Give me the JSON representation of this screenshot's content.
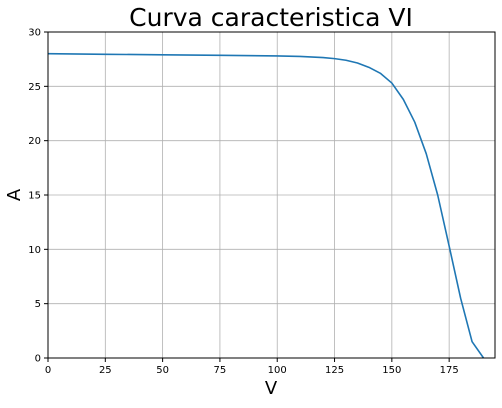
{
  "chart_data": {
    "type": "line",
    "title": "Curva caracteristica VI",
    "xlabel": "V",
    "ylabel": "A",
    "xlim": [
      0,
      195
    ],
    "ylim": [
      0,
      30
    ],
    "xticks": [
      0,
      25,
      50,
      75,
      100,
      125,
      150,
      175
    ],
    "yticks": [
      0,
      5,
      10,
      15,
      20,
      25,
      30
    ],
    "grid": true,
    "colors": {
      "line": "#1f77b4",
      "grid": "#b0b0b0"
    },
    "series": [
      {
        "x": [
          0,
          25,
          50,
          75,
          100,
          110,
          120,
          125,
          130,
          135,
          140,
          145,
          150,
          155,
          160,
          165,
          170,
          175,
          180,
          185,
          190
        ],
        "y": [
          28.0,
          27.95,
          27.9,
          27.85,
          27.8,
          27.75,
          27.65,
          27.55,
          27.4,
          27.15,
          26.75,
          26.2,
          25.3,
          23.8,
          21.7,
          18.8,
          15.0,
          10.3,
          5.5,
          1.5,
          0
        ]
      }
    ]
  }
}
